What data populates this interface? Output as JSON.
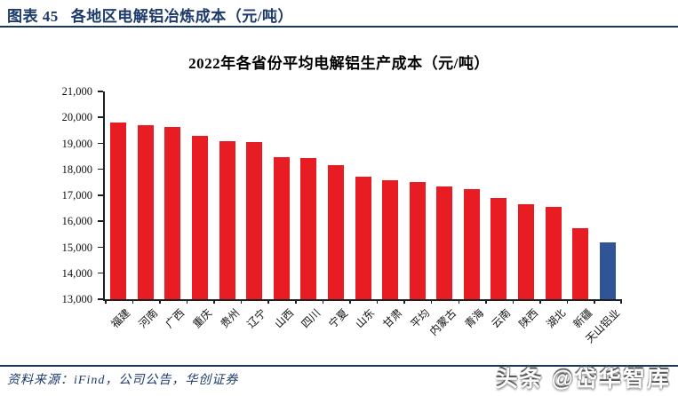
{
  "header": {
    "figure_label": "图表 45",
    "figure_title": "各地区电解铝冶炼成本（元/吨）"
  },
  "chart_data": {
    "type": "bar",
    "title": "2022年各省份平均电解铝生产成本（元/吨）",
    "categories": [
      "福建",
      "河南",
      "广西",
      "重庆",
      "贵州",
      "辽宁",
      "山西",
      "四川",
      "宁夏",
      "山东",
      "甘肃",
      "平均",
      "内蒙古",
      "青海",
      "云南",
      "陕西",
      "湖北",
      "新疆",
      "天山铝业"
    ],
    "values": [
      19800,
      19700,
      19650,
      19300,
      19100,
      19050,
      18480,
      18450,
      18180,
      17720,
      17570,
      17520,
      17350,
      17250,
      16900,
      16650,
      16550,
      15750,
      15200
    ],
    "colors": {
      "default": "#e81c23",
      "highlight_index": 18,
      "highlight": "#2f5597"
    },
    "ylim": [
      13000,
      21000
    ],
    "ytick_step": 1000,
    "grid": false,
    "legend": false,
    "xlabel": "",
    "ylabel": ""
  },
  "footer": {
    "source": "资料来源：iFind，公司公告，华创证券"
  },
  "watermark": {
    "text": "头条 @岱华智库"
  }
}
